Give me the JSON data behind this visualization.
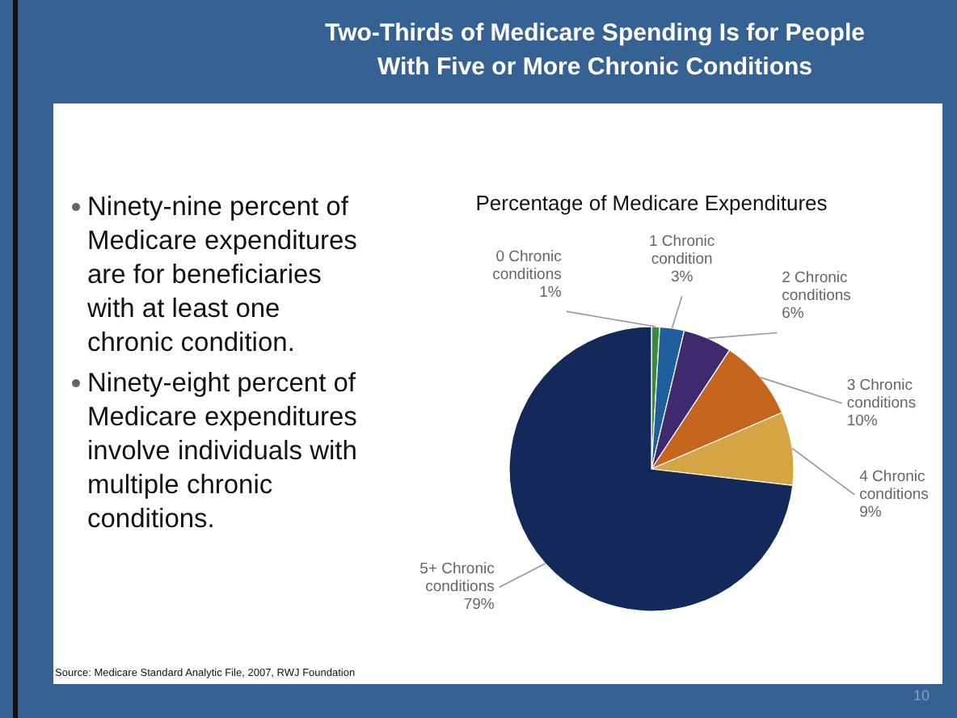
{
  "chart_data": {
    "type": "pie",
    "title": "Two-Thirds of Medicare Spending Is for People With Five or More Chronic Conditions",
    "subtitle": "Percentage of Medicare Expenditures",
    "categories": [
      "0 Chronic conditions",
      "1 Chronic condition",
      "2 Chronic conditions",
      "3 Chronic conditions",
      "4 Chronic conditions",
      "5+ Chronic conditions"
    ],
    "values": [
      1,
      3,
      6,
      10,
      9,
      79
    ],
    "value_labels": [
      "1%",
      "3%",
      "6%",
      "10%",
      "9%",
      "79%"
    ],
    "colors": [
      "#3c8a3c",
      "#1f5f9e",
      "#3f2a6e",
      "#c5651e",
      "#d5a445",
      "#13295a"
    ],
    "annotations": [
      "Ninety-nine percent of Medicare expenditures are for beneficiaries with at least one chronic condition.",
      "Ninety-eight percent of Medicare expenditures involve individuals with multiple chronic conditions.",
      "Source: Medicare Standard Analytic File, 2007, RWJ Foundation",
      "10"
    ]
  }
}
